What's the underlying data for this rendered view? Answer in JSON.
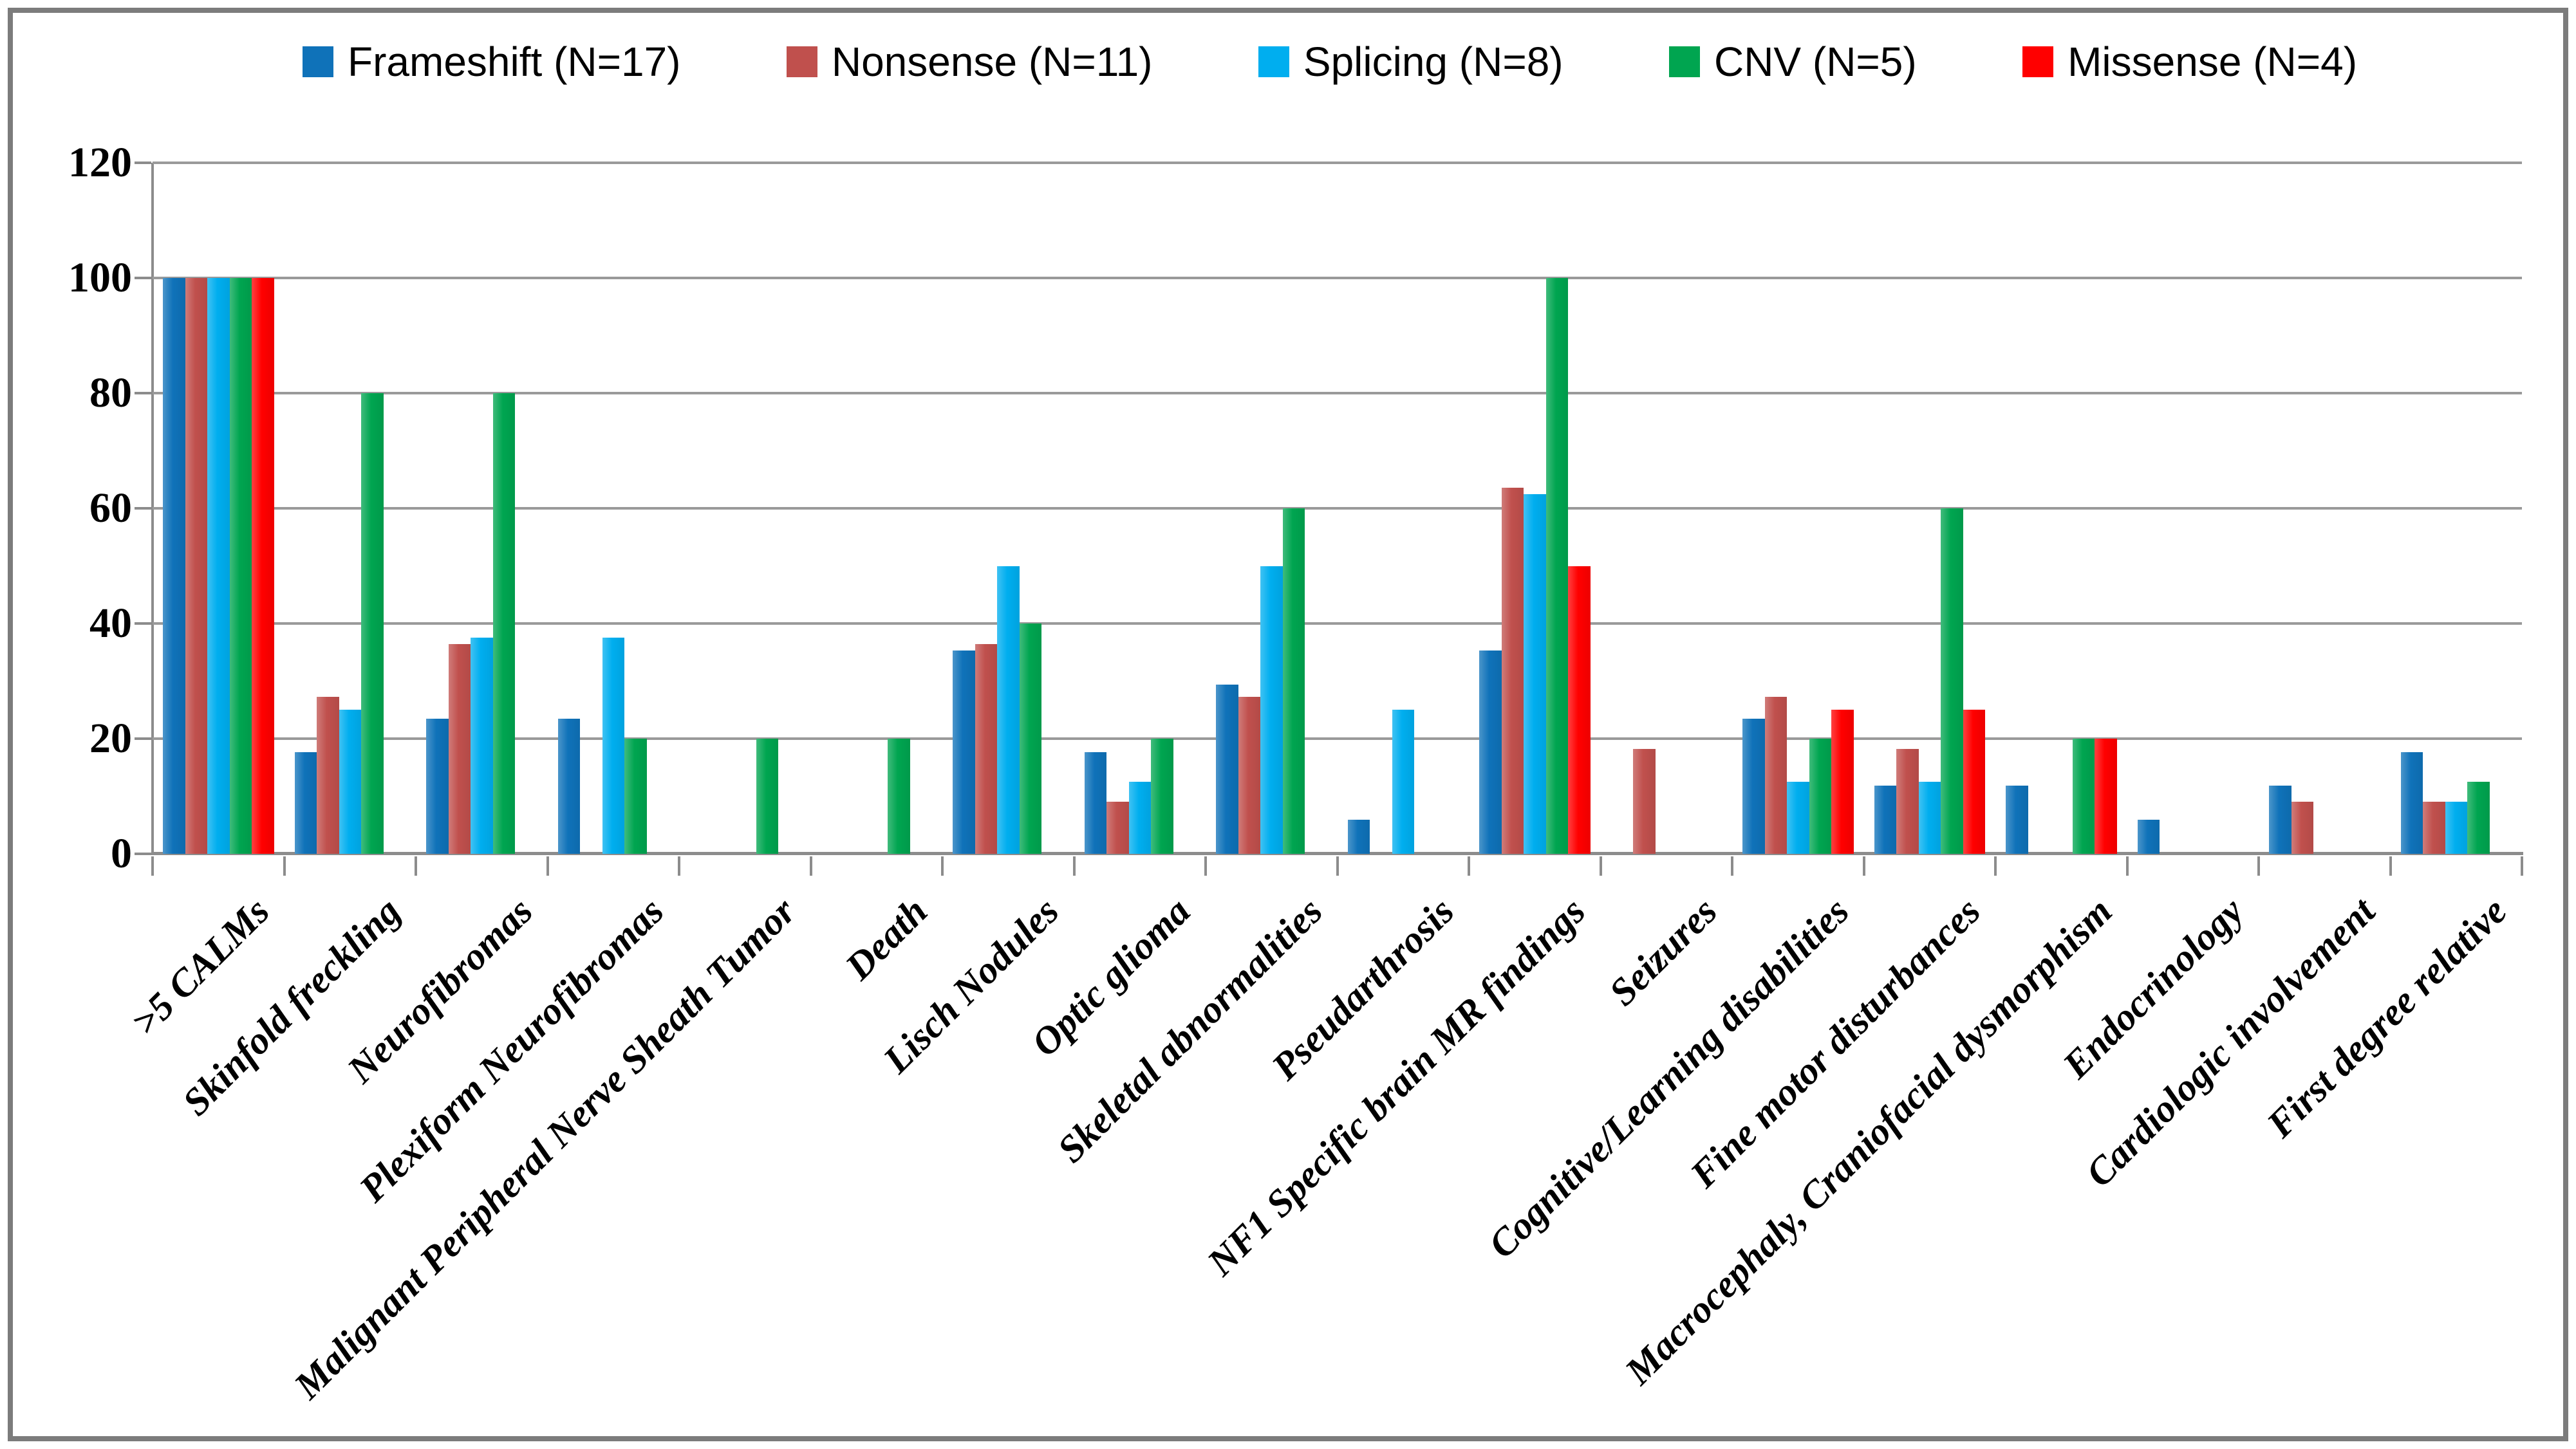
{
  "figure": {
    "frame_color": "#7c7c7c",
    "background": "#ffffff",
    "gridline_color": "#9a9a9a",
    "axis_color": "#8c8c8c"
  },
  "chart_data": {
    "type": "bar",
    "title": "",
    "xlabel": "",
    "ylabel": "",
    "ylim": [
      0,
      120
    ],
    "yticks": [
      0,
      20,
      40,
      60,
      80,
      100,
      120
    ],
    "grid": true,
    "legend_position": "top",
    "categories": [
      ">5 CALMs",
      "Skinfold freckling",
      "Neurofibromas",
      "Plexiform Neurofibromas",
      "Malignant Peripheral Nerve Sheath Tumor",
      "Death",
      "Lisch Nodules",
      "Optic glioma",
      "Skeletal abnormalities",
      "Pseudarthrosis",
      "NF1 Specific brain MR findings",
      "Seizures",
      "Cognitive/Learning disabilities",
      "Fine motor disturbances",
      "Macrocephaly, Craniofacial dysmorphism",
      "Endocrinology",
      "Cardiologic involvement",
      "First degree relative"
    ],
    "series": [
      {
        "name": "Frameshift (N=17)",
        "color": "#0f72b9",
        "values": [
          100,
          17.6,
          23.5,
          23.5,
          0,
          0,
          35.3,
          17.6,
          29.4,
          5.9,
          35.3,
          0,
          23.5,
          11.8,
          11.8,
          5.9,
          11.8,
          17.6
        ]
      },
      {
        "name": "Nonsense (N=11)",
        "color": "#c0504d",
        "values": [
          100,
          27.3,
          36.4,
          0,
          0,
          0,
          36.4,
          9.1,
          27.3,
          0,
          63.6,
          18.2,
          27.3,
          18.2,
          0,
          0,
          9.1,
          9.1
        ]
      },
      {
        "name": "Splicing (N=8)",
        "color": "#00aeef",
        "values": [
          100,
          25,
          37.5,
          37.5,
          0,
          0,
          50,
          12.5,
          50,
          25,
          62.5,
          0,
          12.5,
          12.5,
          0,
          0,
          0,
          9.1
        ]
      },
      {
        "name": "CNV (N=5)",
        "color": "#00a550",
        "values": [
          100,
          80,
          80,
          20,
          20,
          20,
          40,
          20,
          60,
          0,
          100,
          0,
          20,
          60,
          20,
          0,
          0,
          12.5
        ]
      },
      {
        "name": "Missense (N=4)",
        "color": "#ff0000",
        "values": [
          100,
          0,
          0,
          0,
          0,
          0,
          0,
          0,
          0,
          0,
          50,
          0,
          25,
          25,
          20,
          0,
          0,
          0
        ]
      }
    ]
  }
}
